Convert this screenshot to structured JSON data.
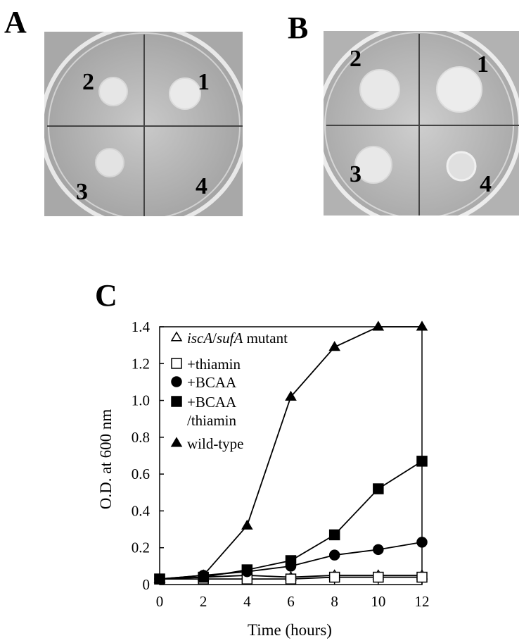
{
  "panels": {
    "a": {
      "letter": "A",
      "plate": {
        "label_1": "1",
        "label_2": "2",
        "label_3": "3",
        "label_4": "4",
        "growth": {
          "1": 0.75,
          "2": 0.75,
          "3": 0.75,
          "4": 0.0
        }
      }
    },
    "b": {
      "letter": "B",
      "plate": {
        "label_1": "1",
        "label_2": "2",
        "label_3": "3",
        "label_4": "4",
        "growth": {
          "1": 1.0,
          "2": 0.85,
          "3": 0.8,
          "4": 0.6
        }
      }
    },
    "c": {
      "letter": "C"
    }
  },
  "chart_data": {
    "type": "line",
    "xlabel": "Time (hours)",
    "ylabel": "O.D. at 600 nm",
    "xlim": [
      0,
      12
    ],
    "ylim": [
      0,
      1.4
    ],
    "xticks": [
      0,
      2,
      4,
      6,
      8,
      10,
      12
    ],
    "yticks": [
      0,
      0.2,
      0.4,
      0.6,
      0.8,
      1.0,
      1.2,
      1.4
    ],
    "ytick_labels": [
      "0",
      "0.2",
      "0.4",
      "0.6",
      "0.8",
      "1.0",
      "1.2",
      "1.4"
    ],
    "grid": false,
    "legend_position": "top-left",
    "x": [
      0,
      2,
      4,
      6,
      8,
      10,
      12
    ],
    "series": [
      {
        "key": "iscA_sufA",
        "name_italic_1": "iscA",
        "name_sep": "/",
        "name_italic_2": "sufA",
        "name_rest": " mutant",
        "marker": "triangle-open",
        "values": [
          0.03,
          0.04,
          0.05,
          0.04,
          0.05,
          0.05,
          0.05
        ]
      },
      {
        "key": "thiamin",
        "name": "+thiamin",
        "marker": "square-open",
        "values": [
          0.03,
          0.03,
          0.03,
          0.03,
          0.04,
          0.04,
          0.04
        ]
      },
      {
        "key": "bcaa",
        "name": "+BCAA",
        "marker": "circle-filled",
        "values": [
          0.03,
          0.05,
          0.07,
          0.1,
          0.16,
          0.19,
          0.23
        ]
      },
      {
        "key": "bcaa_thiamin",
        "name": "+BCAA",
        "name_line2": "/thiamin",
        "marker": "square-filled",
        "values": [
          0.03,
          0.04,
          0.08,
          0.13,
          0.27,
          0.52,
          0.67
        ]
      },
      {
        "key": "wild_type",
        "name": "wild-type",
        "marker": "triangle-filled",
        "values": [
          0.03,
          0.05,
          0.32,
          1.02,
          1.29,
          1.4,
          1.4
        ]
      }
    ]
  }
}
